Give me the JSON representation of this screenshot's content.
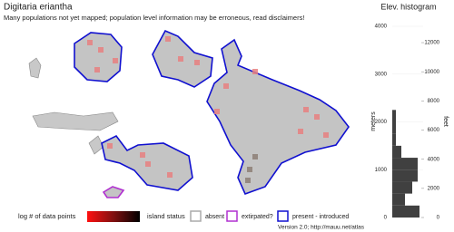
{
  "map": {
    "title": "Digitaria eriantha",
    "subtitle": "Many populations not yet mapped; population level information may be erroneous, read disclaimers!",
    "legend_points": "log # of data points",
    "legend_status": "island status",
    "status_absent": "absent",
    "status_extirpated": "extirpated?",
    "status_present": "present - introduced",
    "footer": "Version 2.0; http://mauu.net/atlas"
  },
  "chart_data": {
    "type": "histogram",
    "title": "Elev. histogram",
    "ylabel": "meters",
    "y2label": "feet",
    "bins": [
      0,
      250,
      500,
      750,
      1000,
      1250,
      1500,
      1750,
      2000,
      2250
    ],
    "counts": [
      30,
      14,
      22,
      28,
      28,
      10,
      4,
      4,
      4
    ],
    "color": "#404040",
    "ylim": [
      0,
      4000
    ],
    "yticks": [
      0,
      1000,
      2000,
      3000,
      4000
    ],
    "y2ticks": [
      0,
      2000,
      4000,
      6000,
      8000,
      10000,
      12000
    ]
  }
}
